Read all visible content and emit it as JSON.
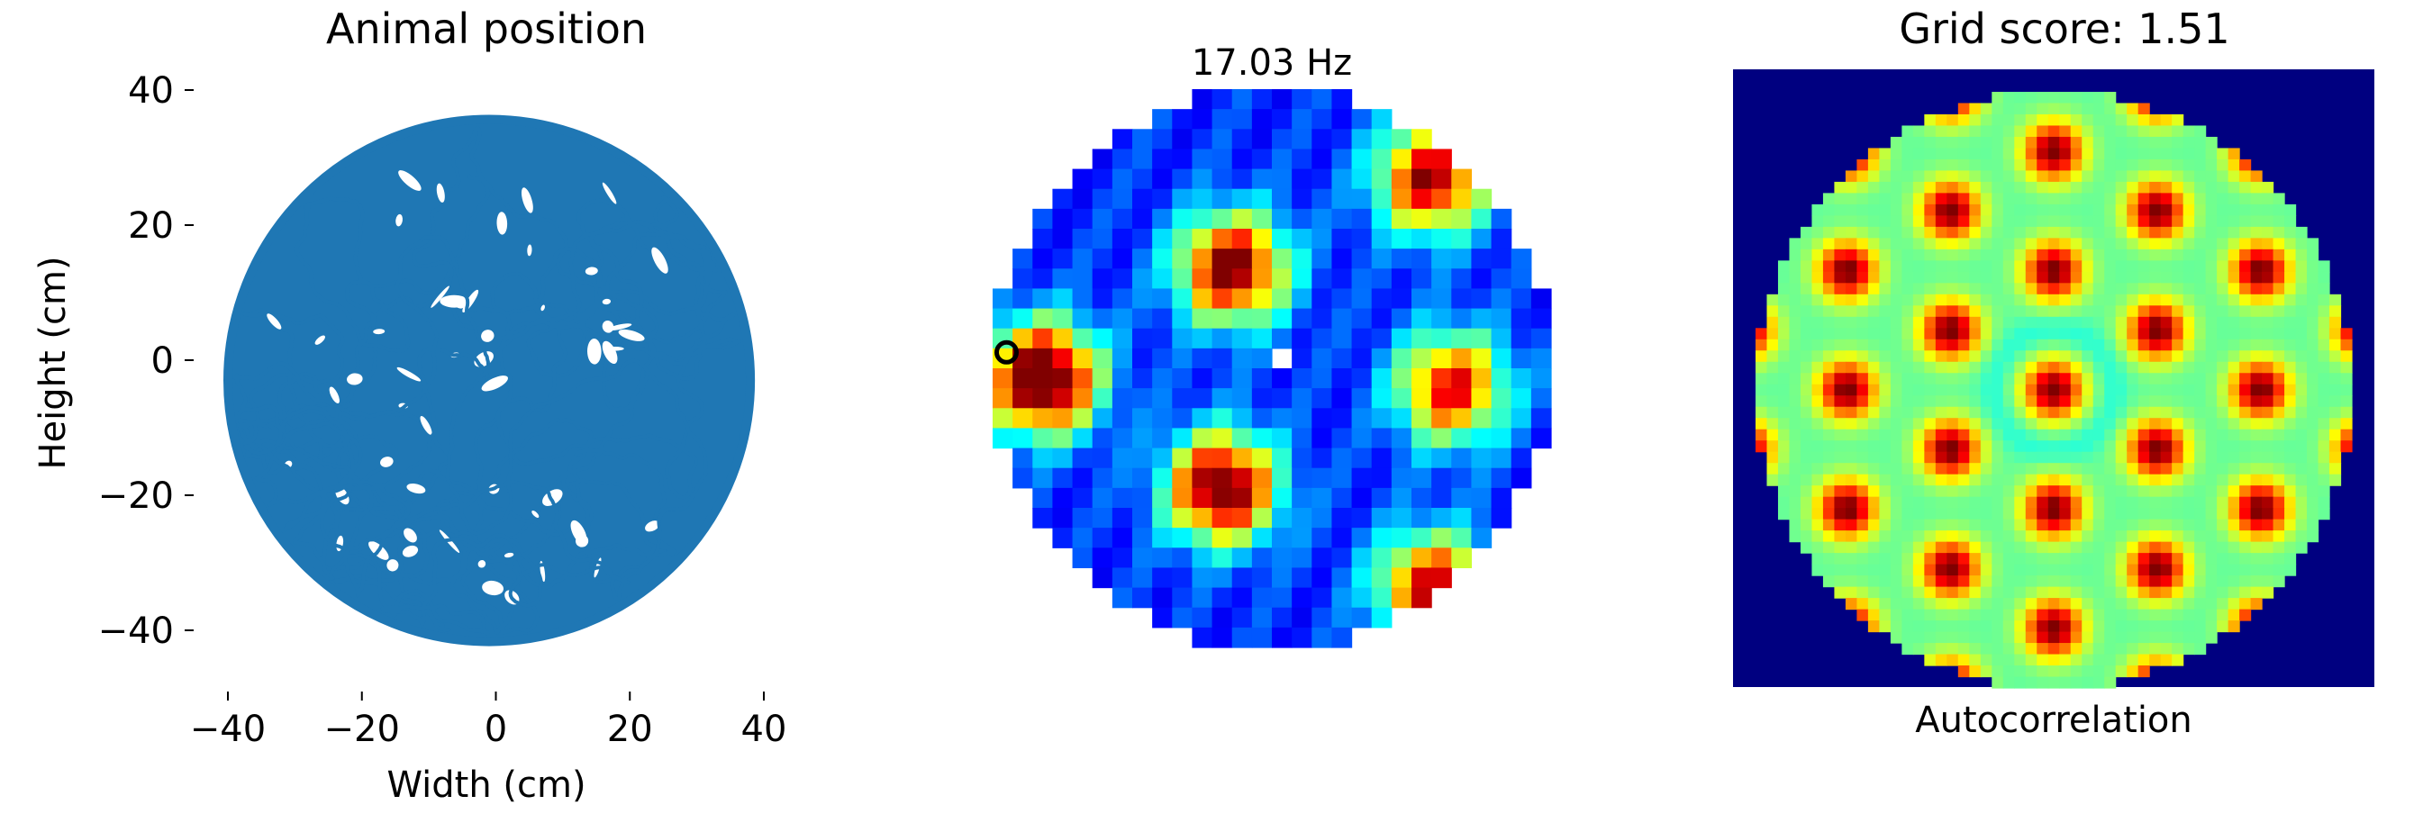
{
  "chart_data": [
    {
      "type": "line",
      "title": "Animal position",
      "xlabel": "Width (cm)",
      "ylabel": "Height (cm)",
      "xlim": [
        -45,
        45
      ],
      "ylim": [
        -45,
        45
      ],
      "x_ticks": [
        -40,
        -20,
        0,
        20,
        40
      ],
      "y_ticks": [
        -40,
        -20,
        0,
        20,
        40
      ],
      "x_tick_labels": [
        "−40",
        "−20",
        "0",
        "20",
        "40"
      ],
      "y_tick_labels": [
        "−40",
        "−20",
        "0",
        "20",
        "40"
      ],
      "arena_center": [
        -1,
        -3
      ],
      "arena_radius": 39,
      "line_color": "#1f77b4",
      "grid": false
    },
    {
      "type": "heatmap",
      "title": "17.03 Hz",
      "colormap": "jet",
      "bins": 28,
      "arena_radius_bins": 14,
      "peak_marker": [
        0,
        14.5
      ],
      "fields": [
        {
          "cx": 12,
          "cy": 9,
          "amp": 0.85
        },
        {
          "cx": 11.5,
          "cy": 20,
          "amp": 0.9
        },
        {
          "cx": 2.5,
          "cy": 14.5,
          "amp": 1.0
        },
        {
          "cx": 23,
          "cy": 15,
          "amp": 0.72
        },
        {
          "cx": 22,
          "cy": 4.5,
          "amp": 0.8
        },
        {
          "cx": 22,
          "cy": 25,
          "amp": 0.75
        }
      ],
      "grid": false
    },
    {
      "type": "heatmap",
      "title": "Grid score: 1.51",
      "xlabel": "Autocorrelation",
      "colormap": "jet",
      "bins": 57,
      "background_color": "#000080",
      "grid": false
    }
  ]
}
